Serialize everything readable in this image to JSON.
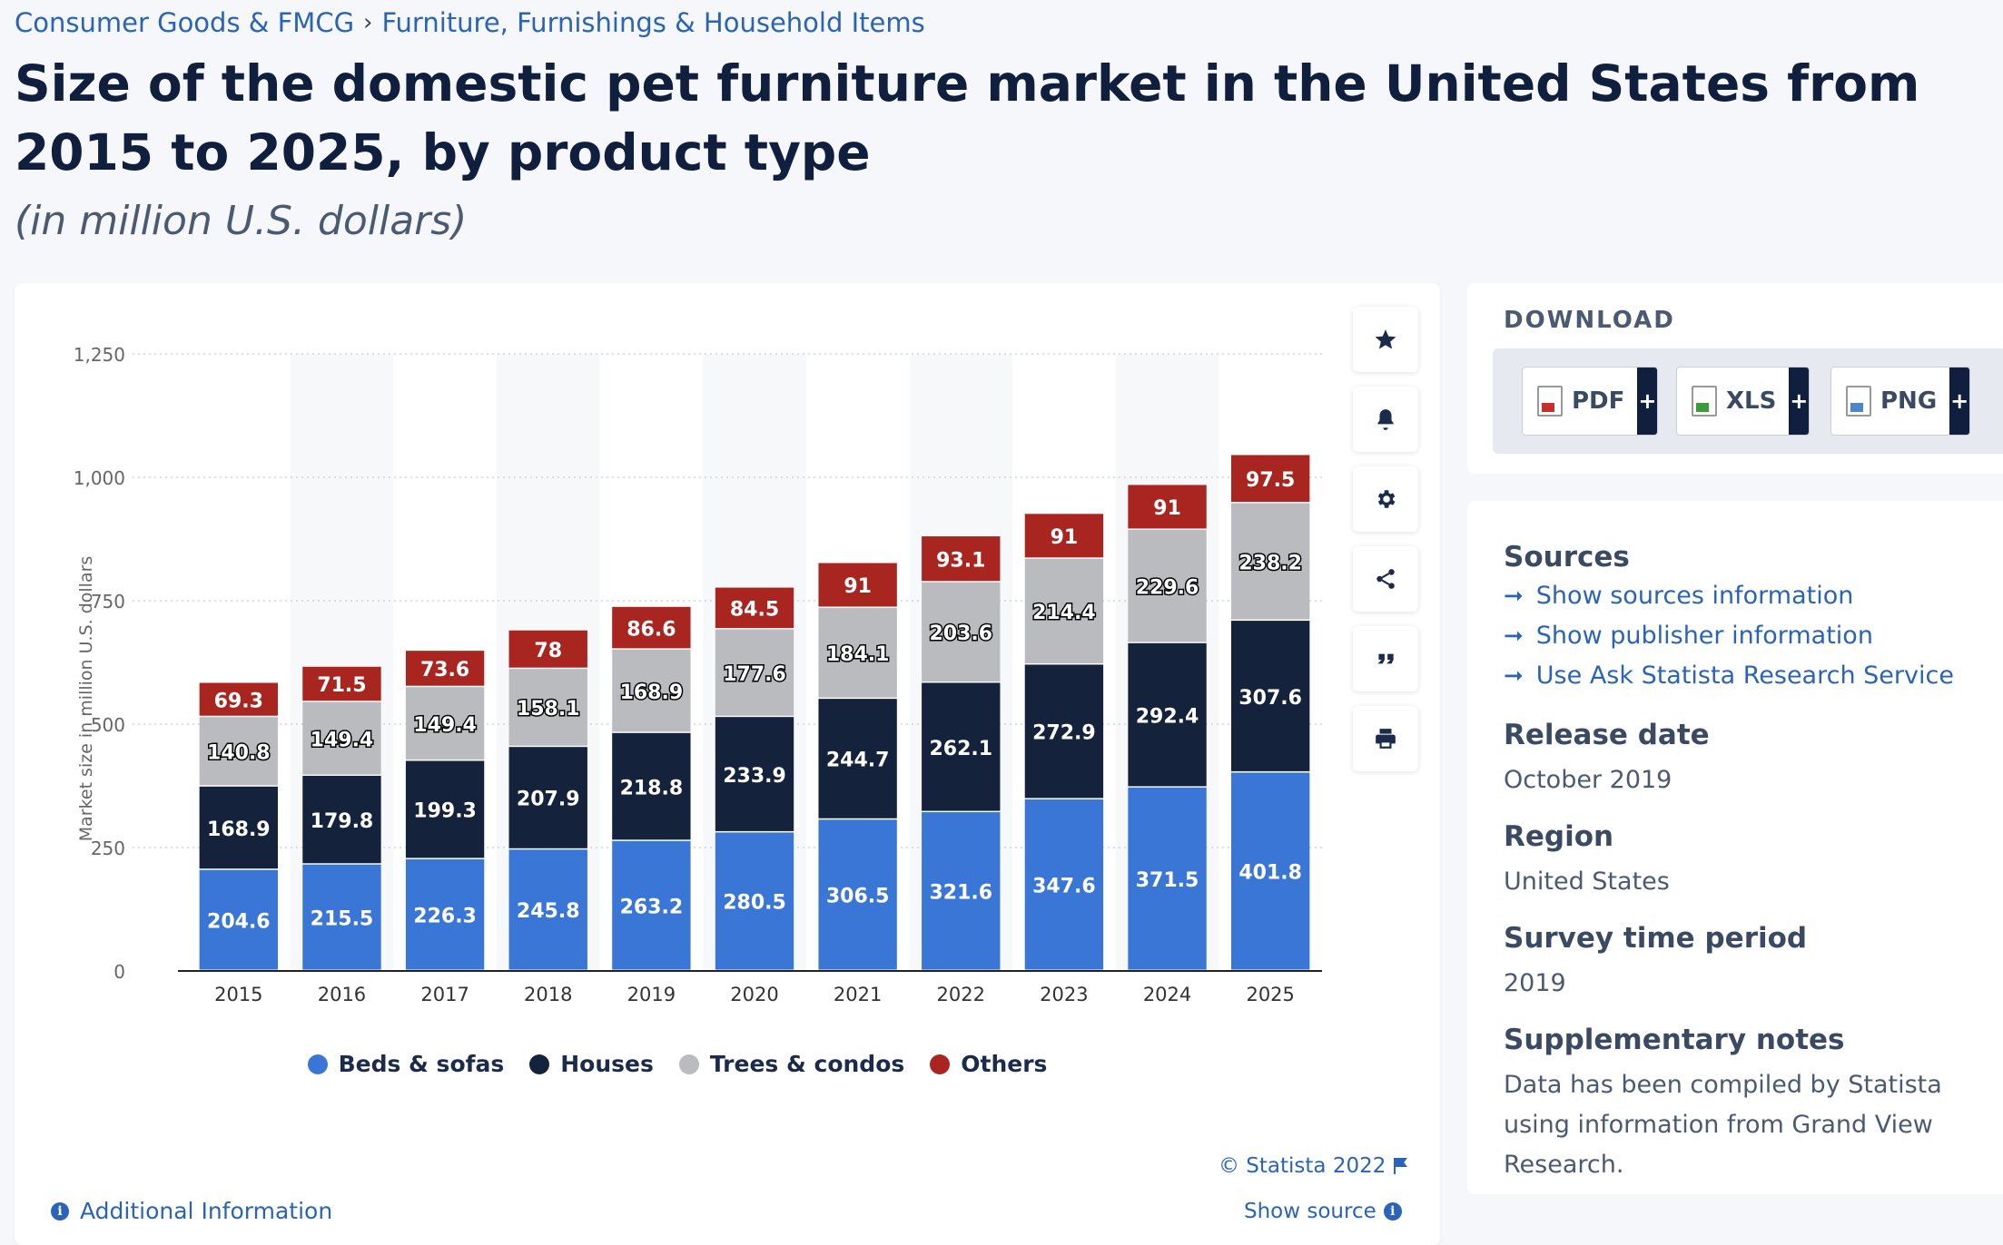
{
  "breadcrumb": {
    "items": [
      "Consumer Goods & FMCG",
      "Furniture, Furnishings & Household Items"
    ],
    "separator": "›"
  },
  "title": "Size of the domestic pet furniture market in the United States from 2015 to 2025, by product type",
  "subtitle": "(in million U.S. dollars)",
  "chart_data": {
    "type": "bar",
    "stacked": true,
    "ylabel": "Market size in million U.S. dollars",
    "xlabel": "",
    "ylim": [
      0,
      1250
    ],
    "yticks": [
      0,
      250,
      500,
      750,
      1000,
      1250
    ],
    "ytick_labels": [
      "0",
      "250",
      "500",
      "750",
      "1,000",
      "1,250"
    ],
    "grid": true,
    "legend_position": "bottom",
    "categories": [
      "2015",
      "2016",
      "2017",
      "2018",
      "2019",
      "2020",
      "2021",
      "2022",
      "2023",
      "2024",
      "2025"
    ],
    "series": [
      {
        "name": "Beds & sofas",
        "color": "#3a76d6",
        "values": [
          204.6,
          215.5,
          226.3,
          245.8,
          263.2,
          280.5,
          306.5,
          321.6,
          347.6,
          371.5,
          401.8
        ]
      },
      {
        "name": "Houses",
        "color": "#14223c",
        "values": [
          168.9,
          179.8,
          199.3,
          207.9,
          218.8,
          233.9,
          244.7,
          262.1,
          272.9,
          292.4,
          307.6
        ]
      },
      {
        "name": "Trees & condos",
        "color": "#b9bbbe",
        "values": [
          140.8,
          149.4,
          149.4,
          158.1,
          168.9,
          177.6,
          184.1,
          203.6,
          214.4,
          229.6,
          238.2
        ]
      },
      {
        "name": "Others",
        "color": "#a82520",
        "values": [
          69.3,
          71.5,
          73.6,
          78,
          86.6,
          84.5,
          91,
          93.1,
          91,
          91,
          97.5
        ]
      }
    ]
  },
  "toolbar": {
    "icons": [
      "star-icon",
      "bell-icon",
      "gear-icon",
      "share-icon",
      "quote-icon",
      "print-icon"
    ]
  },
  "credit": "© Statista 2022",
  "show_source": "Show source",
  "additional_info": "Additional Information",
  "download": {
    "title": "DOWNLOAD",
    "buttons": [
      "PDF",
      "XLS",
      "PNG"
    ],
    "plus": "+"
  },
  "info": {
    "sources_heading": "Sources",
    "source_links": [
      "Show sources information",
      "Show publisher information",
      "Use Ask Statista Research Service"
    ],
    "release_heading": "Release date",
    "release_value": "October 2019",
    "region_heading": "Region",
    "region_value": "United States",
    "survey_heading": "Survey time period",
    "survey_value": "2019",
    "notes_heading": "Supplementary notes",
    "notes_value": "Data has been compiled by Statista using information from Grand View Research."
  }
}
